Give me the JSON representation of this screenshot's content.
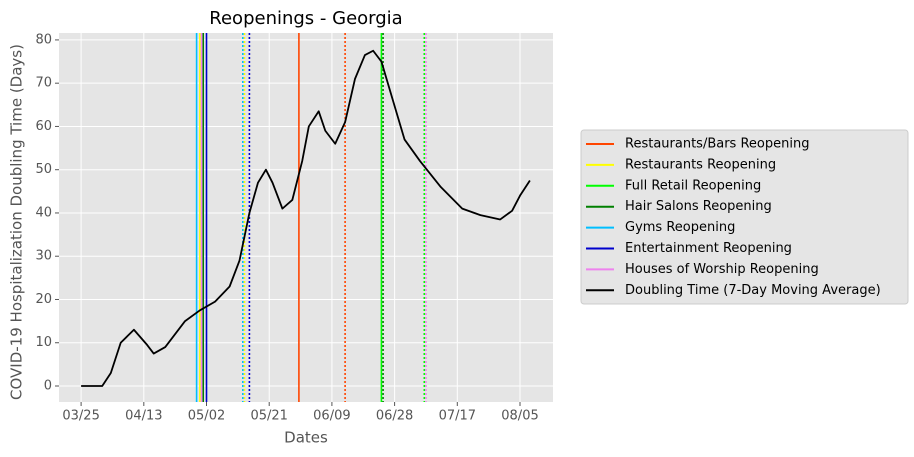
{
  "chart_data": {
    "type": "line",
    "title": "Reopenings - Georgia",
    "xlabel": "Dates",
    "ylabel": "COVID-19 Hospitalization Doubling Time (Days)",
    "xlim": [
      -6.7,
      143
    ],
    "ylim": [
      -3.7,
      81.6
    ],
    "xticks": [
      {
        "value": 0,
        "label": "03/25"
      },
      {
        "value": 19,
        "label": "04/13"
      },
      {
        "value": 38,
        "label": "05/02"
      },
      {
        "value": 57,
        "label": "05/21"
      },
      {
        "value": 76,
        "label": "06/09"
      },
      {
        "value": 95,
        "label": "06/28"
      },
      {
        "value": 114,
        "label": "07/17"
      },
      {
        "value": 133,
        "label": "08/05"
      }
    ],
    "yticks": [
      0,
      10,
      20,
      30,
      40,
      50,
      60,
      70,
      80
    ],
    "grid": true,
    "legend": "right",
    "linestyles": [
      "solid",
      "dotted"
    ],
    "events": [
      {
        "name": "Restaurants/Bars Reopening",
        "color": "#ff4500",
        "x": [
          66,
          80
        ]
      },
      {
        "name": "Restaurants Reopening",
        "color": "#ffff00",
        "x": [
          36,
          49.5
        ]
      },
      {
        "name": "Full Retail Reopening",
        "color": "#00ff00",
        "x": [
          91,
          104
        ]
      },
      {
        "name": "Hair Salons Reopening",
        "color": "#008000",
        "x": [
          37,
          91.5
        ]
      },
      {
        "name": "Gyms Reopening",
        "color": "#00bfff",
        "x": [
          35,
          49
        ]
      },
      {
        "name": "Entertainment Reopening",
        "color": "#0000cd",
        "x": [
          38,
          51
        ]
      },
      {
        "name": "Houses of Worship Reopening",
        "color": "#ee82ee",
        "x": [
          36.5,
          104.5
        ]
      }
    ],
    "series": [
      {
        "name": "Doubling Time (7-Day Moving Average)",
        "color": "#000000",
        "x": [
          0,
          6.4,
          9,
          12,
          16,
          20,
          22,
          25.5,
          31.5,
          36,
          40.6,
          45,
          48,
          51,
          53.6,
          56,
          58,
          61,
          64,
          67,
          69,
          72,
          74,
          77,
          80,
          83,
          86,
          88.5,
          91,
          94.5,
          98,
          102.7,
          109,
          115.5,
          121,
          127,
          130.6,
          133,
          136
        ],
        "values": [
          0,
          0,
          3,
          10,
          13,
          9.5,
          7.5,
          9,
          15,
          17.5,
          19.5,
          23,
          29,
          40,
          47,
          50,
          47,
          41,
          43,
          52,
          60,
          63.5,
          59,
          56,
          61,
          71,
          76.5,
          77.5,
          75,
          66,
          57,
          52,
          46,
          41,
          39.5,
          38.5,
          40.5,
          44,
          47.5
        ]
      }
    ]
  }
}
